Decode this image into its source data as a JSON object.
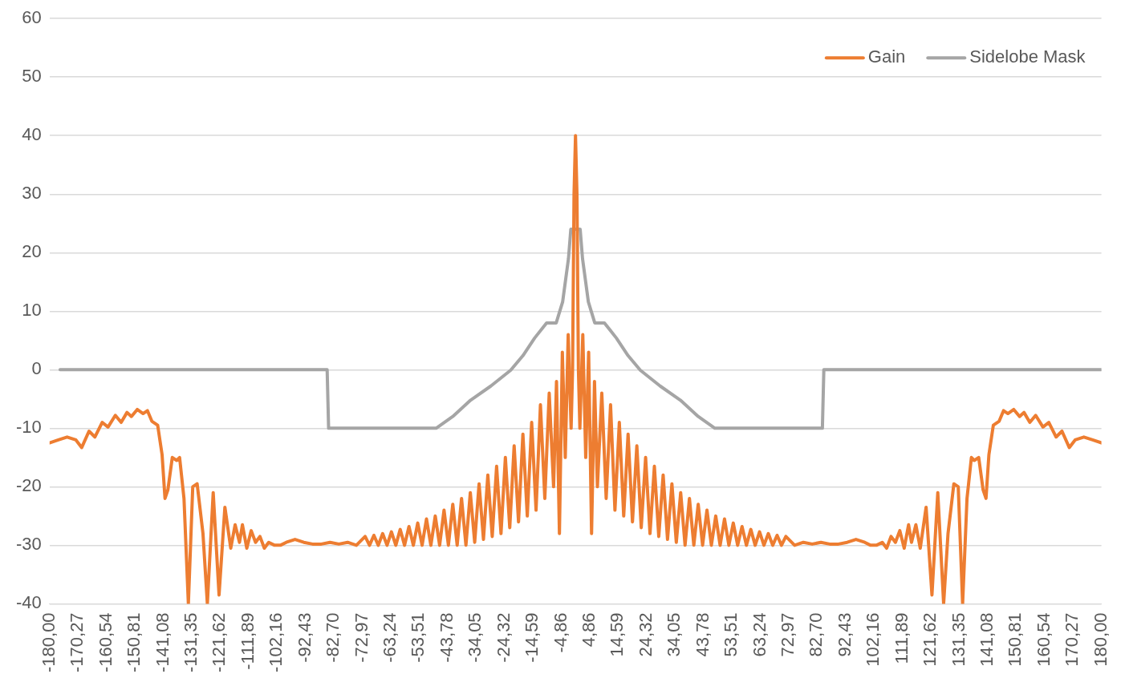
{
  "chart_data": {
    "type": "line",
    "xlim": [
      -180,
      180
    ],
    "ylim": [
      -40,
      60
    ],
    "yticks": [
      -40,
      -30,
      -20,
      -10,
      0,
      10,
      20,
      30,
      40,
      50,
      60
    ],
    "xticks": [
      {
        "value": -180,
        "label": "-180,00"
      },
      {
        "value": -170.27,
        "label": "-170,27"
      },
      {
        "value": -160.54,
        "label": "-160,54"
      },
      {
        "value": -150.81,
        "label": "-150,81"
      },
      {
        "value": -141.08,
        "label": "-141,08"
      },
      {
        "value": -131.35,
        "label": "-131,35"
      },
      {
        "value": -121.62,
        "label": "-121,62"
      },
      {
        "value": -111.89,
        "label": "-111,89"
      },
      {
        "value": -102.16,
        "label": "-102,16"
      },
      {
        "value": -92.43,
        "label": "-92,43"
      },
      {
        "value": -82.7,
        "label": "-82,70"
      },
      {
        "value": -72.97,
        "label": "-72,97"
      },
      {
        "value": -63.24,
        "label": "-63,24"
      },
      {
        "value": -53.51,
        "label": "-53,51"
      },
      {
        "value": -43.78,
        "label": "-43,78"
      },
      {
        "value": -34.05,
        "label": "-34,05"
      },
      {
        "value": -24.32,
        "label": "-24,32"
      },
      {
        "value": -14.59,
        "label": "-14,59"
      },
      {
        "value": -4.86,
        "label": "-4,86"
      },
      {
        "value": 4.86,
        "label": "4,86"
      },
      {
        "value": 14.59,
        "label": "14,59"
      },
      {
        "value": 24.32,
        "label": "24,32"
      },
      {
        "value": 34.05,
        "label": "34,05"
      },
      {
        "value": 43.78,
        "label": "43,78"
      },
      {
        "value": 53.51,
        "label": "53,51"
      },
      {
        "value": 63.24,
        "label": "63,24"
      },
      {
        "value": 72.97,
        "label": "72,97"
      },
      {
        "value": 82.7,
        "label": "82,70"
      },
      {
        "value": 92.43,
        "label": "92,43"
      },
      {
        "value": 102.16,
        "label": "102,16"
      },
      {
        "value": 111.89,
        "label": "111,89"
      },
      {
        "value": 121.62,
        "label": "121,62"
      },
      {
        "value": 131.35,
        "label": "131,35"
      },
      {
        "value": 141.08,
        "label": "141,08"
      },
      {
        "value": 150.81,
        "label": "150,81"
      },
      {
        "value": 160.54,
        "label": "160,54"
      },
      {
        "value": 170.27,
        "label": "170,27"
      },
      {
        "value": 180,
        "label": "180,00"
      }
    ],
    "grid": "y",
    "legend": "top right",
    "marker": "none",
    "line_style": "solid",
    "series": [
      {
        "name": "Gain",
        "color": "#ed7d31",
        "x": [
          -180,
          -177,
          -174,
          -171,
          -169,
          -166.5,
          -164.5,
          -162,
          -160,
          -157.5,
          -155.5,
          -153.5,
          -152,
          -150,
          -148,
          -146.5,
          -145,
          -143,
          -141.5,
          -140.5,
          -139.5,
          -138,
          -136.5,
          -135.5,
          -134,
          -132.5,
          -131,
          -129.5,
          -127.5,
          -126,
          -124,
          -122,
          -120,
          -118,
          -116.5,
          -115,
          -114,
          -112.5,
          -111,
          -109.5,
          -108,
          -106.5,
          -105,
          -103,
          -101,
          -99,
          -96,
          -93,
          -90,
          -87,
          -84,
          -81,
          -78,
          -75,
          -72,
          -70.5,
          -69,
          -67.5,
          -66,
          -64.5,
          -63,
          -61.5,
          -60,
          -58.5,
          -57,
          -55.5,
          -54,
          -52.5,
          -51,
          -49.5,
          -48,
          -46.5,
          -45,
          -43.5,
          -42,
          -40.5,
          -39,
          -37.5,
          -36,
          -34.5,
          -33,
          -31.5,
          -30,
          -28.5,
          -27,
          -25.5,
          -24,
          -22.5,
          -21,
          -19.5,
          -18,
          -16.5,
          -15,
          -13.5,
          -12,
          -10.5,
          -9,
          -7.5,
          -6.5,
          -5.5,
          -4.5,
          -3.5,
          -2.5,
          -1.5,
          -1,
          -0.5,
          0,
          0.5,
          1,
          1.5,
          2.5,
          3.5,
          4.5,
          5.5,
          6.5,
          7.5,
          9,
          10.5,
          12,
          13.5,
          15,
          16.5,
          18,
          19.5,
          21,
          22.5,
          24,
          25.5,
          27,
          28.5,
          30,
          31.5,
          33,
          34.5,
          36,
          37.5,
          39,
          40.5,
          42,
          43.5,
          45,
          46.5,
          48,
          49.5,
          51,
          52.5,
          54,
          55.5,
          57,
          58.5,
          60,
          61.5,
          63,
          64.5,
          66,
          67.5,
          69,
          70.5,
          72,
          75,
          78,
          81,
          84,
          87,
          90,
          93,
          96,
          99,
          101,
          103,
          105,
          106.5,
          108,
          109.5,
          111,
          112.5,
          114,
          115,
          116.5,
          118,
          120,
          122,
          124,
          126,
          127.5,
          129.5,
          131,
          132.5,
          134,
          135.5,
          136.5,
          138,
          139.5,
          140.5,
          141.5,
          143,
          145,
          146.5,
          148,
          150,
          152,
          153.5,
          155.5,
          157.5,
          160,
          162,
          164.5,
          166.5,
          169,
          171,
          174,
          177,
          180
        ],
        "values": [
          -12.5,
          -12,
          -11.5,
          -12,
          -13.3,
          -10.5,
          -11.5,
          -9,
          -9.8,
          -7.8,
          -9,
          -7.3,
          -8,
          -6.8,
          -7.5,
          -7,
          -8.8,
          -9.5,
          -14.5,
          -22,
          -20.5,
          -15,
          -15.5,
          -15,
          -22,
          -40,
          -20,
          -19.5,
          -28,
          -40,
          -21,
          -38.5,
          -23.5,
          -30.5,
          -26.5,
          -29.5,
          -26.5,
          -30.5,
          -27.5,
          -29.5,
          -28.5,
          -30.5,
          -29.5,
          -30,
          -30,
          -29.5,
          -29,
          -29.5,
          -29.8,
          -29.8,
          -29.5,
          -29.8,
          -29.5,
          -30,
          -28.5,
          -30,
          -28.3,
          -30,
          -28,
          -30,
          -27.7,
          -30,
          -27.3,
          -30,
          -26.8,
          -30,
          -26.2,
          -30,
          -25.5,
          -30,
          -25,
          -30,
          -24,
          -30,
          -23,
          -30,
          -22,
          -30,
          -21,
          -29.5,
          -19.5,
          -29,
          -18,
          -28.5,
          -16.5,
          -28,
          -15,
          -27,
          -13,
          -26,
          -11,
          -25,
          -9,
          -24,
          -6,
          -22,
          -4,
          -20,
          -2,
          -28,
          3,
          -15,
          6,
          -10,
          0,
          30,
          40,
          30,
          0,
          -10,
          6,
          -15,
          3,
          -28,
          -2,
          -20,
          -4,
          -22,
          -6,
          -24,
          -9,
          -25,
          -11,
          -26,
          -13,
          -27,
          -15,
          -28,
          -16.5,
          -28.5,
          -18,
          -29,
          -19.5,
          -29.5,
          -21,
          -30,
          -22,
          -30,
          -23,
          -30,
          -24,
          -30,
          -25,
          -30,
          -25.5,
          -30,
          -26.2,
          -30,
          -26.8,
          -30,
          -27.3,
          -30,
          -27.7,
          -30,
          -28,
          -30,
          -28.3,
          -30,
          -28.5,
          -30,
          -29.5,
          -29.8,
          -29.5,
          -29.8,
          -29.8,
          -29.5,
          -29,
          -29.5,
          -30,
          -30,
          -29.5,
          -30.5,
          -28.5,
          -29.5,
          -27.5,
          -30.5,
          -26.5,
          -29.5,
          -26.5,
          -30.5,
          -23.5,
          -38.5,
          -21,
          -40,
          -28,
          -19.5,
          -20,
          -40,
          -22,
          -15,
          -15.5,
          -15,
          -20.5,
          -22,
          -14.5,
          -9.5,
          -8.8,
          -7,
          -7.5,
          -6.8,
          -8,
          -7.3,
          -9,
          -7.8,
          -9.8,
          -9,
          -11.5,
          -10.5,
          -13.3,
          -12,
          -11.5,
          -12,
          -12.5
        ]
      },
      {
        "name": "Sidelobe Mask",
        "color": "#a5a5a5",
        "x": [
          -176.4,
          -85,
          -84.5,
          -47.7,
          -42,
          -35.9,
          -29,
          -22.2,
          -18,
          -14,
          -9.9,
          -6.6,
          -4.4,
          -2.4,
          -1.6,
          1.6,
          2.4,
          4.4,
          6.6,
          9.9,
          14,
          18,
          22.2,
          29,
          35.9,
          42,
          47.7,
          84.5,
          85,
          180
        ],
        "values": [
          0,
          0,
          -10,
          -10,
          -8,
          -5.2,
          -2.8,
          -0.1,
          2.4,
          5.4,
          8,
          8,
          11.6,
          19,
          24,
          24,
          19,
          11.6,
          8,
          8,
          5.4,
          2.4,
          -0.1,
          -2.8,
          -5.2,
          -8,
          -10,
          -10,
          0,
          0
        ]
      }
    ]
  }
}
